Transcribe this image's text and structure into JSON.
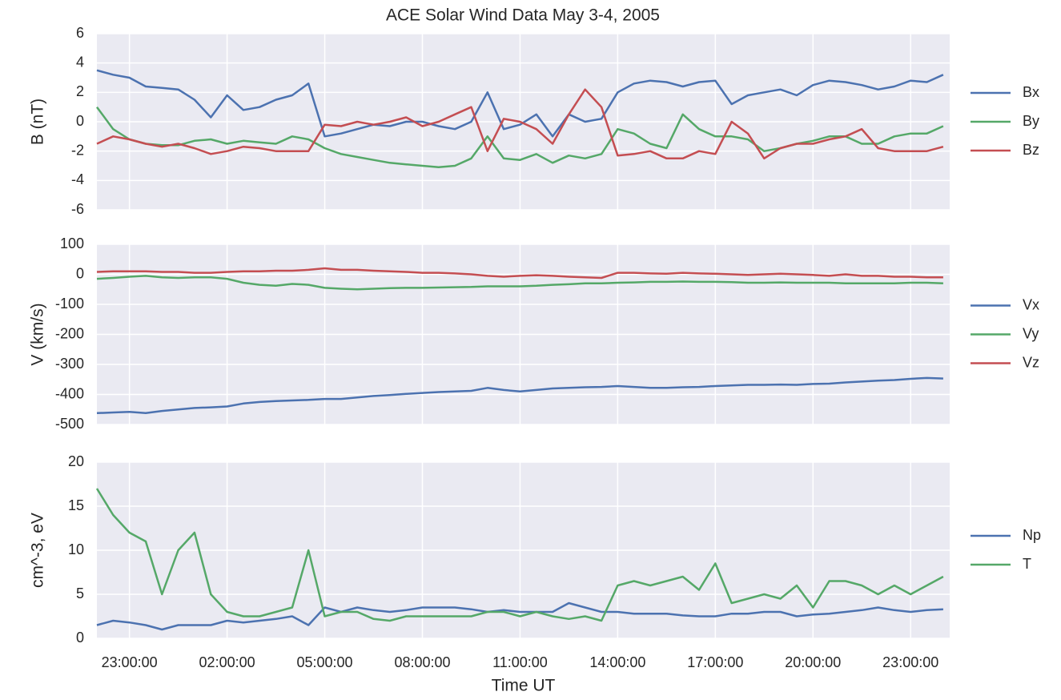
{
  "chart_data": [
    {
      "type": "line",
      "title": "ACE Solar Wind Data May 3-4, 2005",
      "ylabel": "B (nT)",
      "x": [
        22,
        22.5,
        23,
        23.5,
        24,
        24.5,
        25,
        25.5,
        26,
        26.5,
        27,
        27.5,
        28,
        28.5,
        29,
        29.5,
        30,
        30.5,
        31,
        31.5,
        32,
        32.5,
        33,
        33.5,
        34,
        34.5,
        35,
        35.5,
        36,
        36.5,
        37,
        37.5,
        38,
        38.5,
        39,
        39.5,
        40,
        40.5,
        41,
        41.5,
        42,
        42.5,
        43,
        43.5,
        44,
        44.5,
        45,
        45.5,
        46,
        46.5,
        47,
        47.5,
        48
      ],
      "xlim": [
        22,
        48.2
      ],
      "xticks": [
        23,
        26,
        29,
        32,
        35,
        38,
        41,
        44,
        47
      ],
      "ylim": [
        -6,
        6
      ],
      "yticks": [
        -6,
        -4,
        -2,
        0,
        2,
        4,
        6
      ],
      "grid": true,
      "legend": "right",
      "series": [
        {
          "name": "Bx",
          "color": "#4c72b0",
          "values": [
            3.5,
            3.2,
            3.0,
            2.4,
            2.3,
            2.2,
            1.5,
            0.3,
            1.8,
            0.8,
            1.0,
            1.5,
            1.8,
            2.6,
            -1.0,
            -0.8,
            -0.5,
            -0.2,
            -0.3,
            0,
            0,
            -0.3,
            -0.5,
            0,
            2.0,
            -0.5,
            -0.2,
            0.5,
            -1.0,
            0.5,
            0,
            0.2,
            2.0,
            2.6,
            2.8,
            2.7,
            2.4,
            2.7,
            2.8,
            1.2,
            1.8,
            2.0,
            2.2,
            1.8,
            2.5,
            2.8,
            2.7,
            2.5,
            2.2,
            2.4,
            2.8,
            2.7,
            3.2
          ]
        },
        {
          "name": "By",
          "color": "#55a868",
          "values": [
            1.0,
            -0.5,
            -1.2,
            -1.5,
            -1.6,
            -1.6,
            -1.3,
            -1.2,
            -1.5,
            -1.3,
            -1.4,
            -1.5,
            -1.0,
            -1.2,
            -1.8,
            -2.2,
            -2.4,
            -2.6,
            -2.8,
            -2.9,
            -3.0,
            -3.1,
            -3.0,
            -2.5,
            -1.0,
            -2.5,
            -2.6,
            -2.2,
            -2.8,
            -2.3,
            -2.5,
            -2.2,
            -0.5,
            -0.8,
            -1.5,
            -1.8,
            0.5,
            -0.5,
            -1.0,
            -1.0,
            -1.2,
            -2.0,
            -1.8,
            -1.5,
            -1.3,
            -1.0,
            -1.0,
            -1.5,
            -1.5,
            -1.0,
            -0.8,
            -0.8,
            -0.3
          ]
        },
        {
          "name": "Bz",
          "color": "#c44e52",
          "values": [
            -1.5,
            -1.0,
            -1.2,
            -1.5,
            -1.7,
            -1.5,
            -1.8,
            -2.2,
            -2.0,
            -1.7,
            -1.8,
            -2.0,
            -2.0,
            -2.0,
            -0.2,
            -0.3,
            0,
            -0.2,
            0,
            0.3,
            -0.3,
            0,
            0.5,
            1.0,
            -2.0,
            0.2,
            0,
            -0.5,
            -1.5,
            0.5,
            2.2,
            1.0,
            -2.3,
            -2.2,
            -2.0,
            -2.5,
            -2.5,
            -2.0,
            -2.2,
            0,
            -0.8,
            -2.5,
            -1.8,
            -1.5,
            -1.5,
            -1.2,
            -1.0,
            -0.5,
            -1.8,
            -2.0,
            -2.0,
            -2.0,
            -1.7
          ]
        }
      ]
    },
    {
      "type": "line",
      "ylabel": "V (km/s)",
      "x": [
        22,
        22.5,
        23,
        23.5,
        24,
        24.5,
        25,
        25.5,
        26,
        26.5,
        27,
        27.5,
        28,
        28.5,
        29,
        29.5,
        30,
        30.5,
        31,
        31.5,
        32,
        32.5,
        33,
        33.5,
        34,
        34.5,
        35,
        35.5,
        36,
        36.5,
        37,
        37.5,
        38,
        38.5,
        39,
        39.5,
        40,
        40.5,
        41,
        41.5,
        42,
        42.5,
        43,
        43.5,
        44,
        44.5,
        45,
        45.5,
        46,
        46.5,
        47,
        47.5,
        48
      ],
      "xlim": [
        22,
        48.2
      ],
      "xticks": [
        23,
        26,
        29,
        32,
        35,
        38,
        41,
        44,
        47
      ],
      "ylim": [
        -500,
        100
      ],
      "yticks": [
        -500,
        -400,
        -300,
        -200,
        -100,
        0,
        100
      ],
      "grid": true,
      "legend": "right",
      "series": [
        {
          "name": "Vx",
          "color": "#4c72b0",
          "values": [
            -462,
            -460,
            -458,
            -462,
            -455,
            -450,
            -445,
            -443,
            -440,
            -430,
            -425,
            -422,
            -420,
            -418,
            -415,
            -415,
            -410,
            -405,
            -402,
            -398,
            -395,
            -392,
            -390,
            -388,
            -378,
            -385,
            -390,
            -385,
            -380,
            -378,
            -376,
            -375,
            -372,
            -375,
            -378,
            -378,
            -376,
            -375,
            -372,
            -370,
            -368,
            -368,
            -367,
            -368,
            -365,
            -364,
            -360,
            -357,
            -354,
            -352,
            -348,
            -345,
            -347
          ]
        },
        {
          "name": "Vy",
          "color": "#55a868",
          "values": [
            -15,
            -12,
            -8,
            -5,
            -10,
            -12,
            -10,
            -10,
            -15,
            -28,
            -35,
            -38,
            -32,
            -35,
            -45,
            -48,
            -50,
            -48,
            -46,
            -45,
            -45,
            -44,
            -43,
            -42,
            -40,
            -40,
            -40,
            -38,
            -35,
            -33,
            -30,
            -30,
            -28,
            -27,
            -25,
            -25,
            -24,
            -25,
            -25,
            -26,
            -28,
            -28,
            -27,
            -28,
            -28,
            -28,
            -30,
            -30,
            -30,
            -30,
            -28,
            -28,
            -30
          ]
        },
        {
          "name": "Vz",
          "color": "#c44e52",
          "values": [
            8,
            10,
            10,
            10,
            8,
            8,
            5,
            5,
            8,
            10,
            10,
            12,
            12,
            15,
            20,
            15,
            15,
            12,
            10,
            8,
            5,
            5,
            3,
            0,
            -5,
            -8,
            -5,
            -3,
            -5,
            -8,
            -10,
            -12,
            5,
            5,
            3,
            2,
            5,
            3,
            2,
            0,
            -2,
            0,
            2,
            0,
            -2,
            -5,
            0,
            -5,
            -5,
            -8,
            -8,
            -10,
            -10
          ]
        }
      ]
    },
    {
      "type": "line",
      "ylabel": "cm^-3, eV",
      "xlabel": "Time UT",
      "x": [
        22,
        22.5,
        23,
        23.5,
        24,
        24.5,
        25,
        25.5,
        26,
        26.5,
        27,
        27.5,
        28,
        28.5,
        29,
        29.5,
        30,
        30.5,
        31,
        31.5,
        32,
        32.5,
        33,
        33.5,
        34,
        34.5,
        35,
        35.5,
        36,
        36.5,
        37,
        37.5,
        38,
        38.5,
        39,
        39.5,
        40,
        40.5,
        41,
        41.5,
        42,
        42.5,
        43,
        43.5,
        44,
        44.5,
        45,
        45.5,
        46,
        46.5,
        47,
        47.5,
        48
      ],
      "xlim": [
        22,
        48.2
      ],
      "xticks": [
        {
          "value": 23,
          "label": "23:00:00"
        },
        {
          "value": 26,
          "label": "02:00:00"
        },
        {
          "value": 29,
          "label": "05:00:00"
        },
        {
          "value": 32,
          "label": "08:00:00"
        },
        {
          "value": 35,
          "label": "11:00:00"
        },
        {
          "value": 38,
          "label": "14:00:00"
        },
        {
          "value": 41,
          "label": "17:00:00"
        },
        {
          "value": 44,
          "label": "20:00:00"
        },
        {
          "value": 47,
          "label": "23:00:00"
        }
      ],
      "ylim": [
        0,
        20
      ],
      "yticks": [
        0,
        5,
        10,
        15,
        20
      ],
      "grid": true,
      "legend": "right",
      "series": [
        {
          "name": "Np",
          "color": "#4c72b0",
          "values": [
            1.5,
            2.0,
            1.8,
            1.5,
            1.0,
            1.5,
            1.5,
            1.5,
            2.0,
            1.8,
            2.0,
            2.2,
            2.5,
            1.5,
            3.5,
            3.0,
            3.5,
            3.2,
            3.0,
            3.2,
            3.5,
            3.5,
            3.5,
            3.3,
            3.0,
            3.2,
            3.0,
            3.0,
            3.0,
            4.0,
            3.5,
            3.0,
            3.0,
            2.8,
            2.8,
            2.8,
            2.6,
            2.5,
            2.5,
            2.8,
            2.8,
            3.0,
            3.0,
            2.5,
            2.7,
            2.8,
            3.0,
            3.2,
            3.5,
            3.2,
            3.0,
            3.2,
            3.3
          ]
        },
        {
          "name": "T",
          "color": "#55a868",
          "values": [
            17,
            14,
            12,
            11,
            5,
            10,
            12,
            5,
            3,
            2.5,
            2.5,
            3.0,
            3.5,
            10,
            2.5,
            3,
            3.0,
            2.2,
            2.0,
            2.5,
            2.5,
            2.5,
            2.5,
            2.5,
            3.0,
            3.0,
            2.5,
            3.0,
            2.5,
            2.2,
            2.5,
            2.0,
            6.0,
            6.5,
            6.0,
            6.5,
            7.0,
            5.5,
            8.5,
            4.0,
            4.5,
            5.0,
            4.5,
            6.0,
            3.5,
            6.5,
            6.5,
            6.0,
            5.0,
            6.0,
            5.0,
            6.0,
            7.0
          ]
        }
      ]
    }
  ]
}
